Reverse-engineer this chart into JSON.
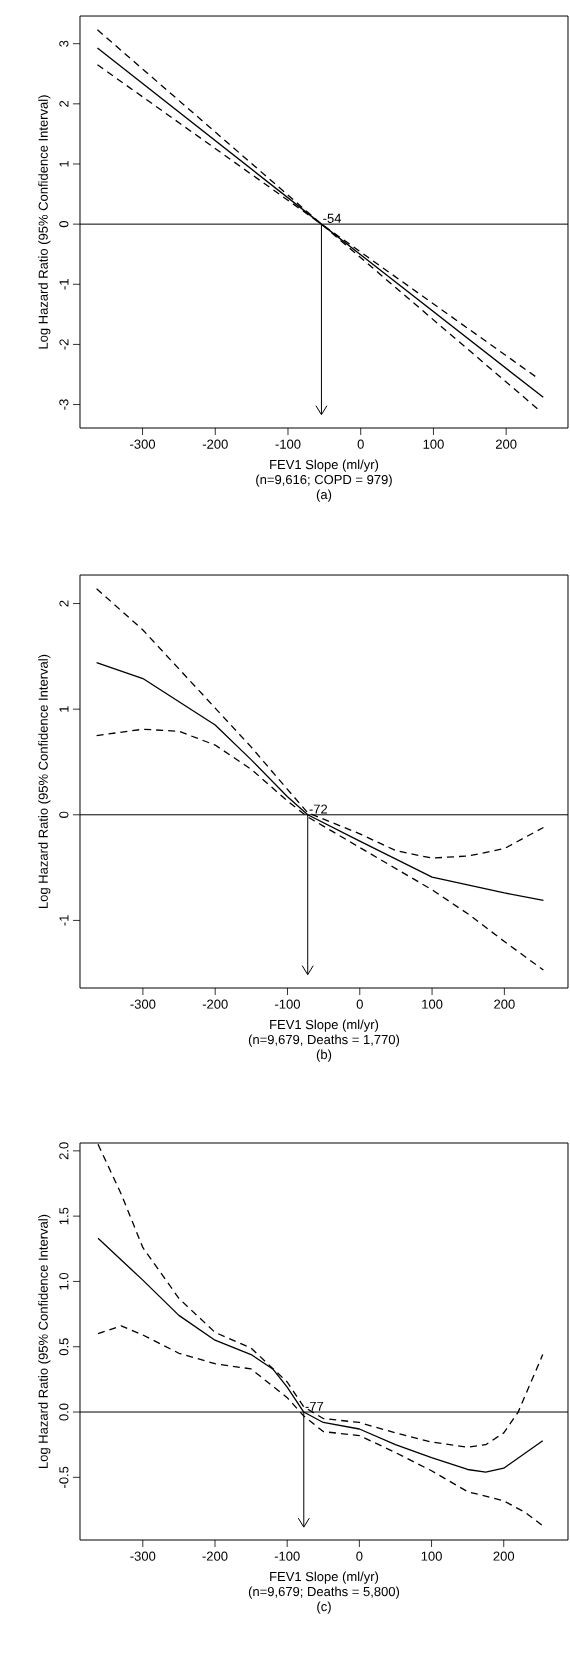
{
  "chart_data": [
    {
      "type": "line",
      "xlabel": "FEV1 Slope (ml/yr)",
      "ylabel": "Log Hazard Ratio (95% Confidence Interval)",
      "xlim": [
        -386,
        285
      ],
      "ylim": [
        -3.39,
        3.46
      ],
      "xticks": [
        -300,
        -200,
        -100,
        0,
        100,
        200
      ],
      "yticks": [
        -3,
        -2,
        -1,
        0,
        1,
        2,
        3
      ],
      "series": [
        {
          "color": "#000000",
          "line_style": "solid",
          "x": [
            -362,
            -54,
            251
          ],
          "values": [
            2.93,
            0.0,
            -2.88
          ]
        },
        {
          "color": "#000000",
          "line_style": "dashed",
          "x": [
            -362,
            -54,
            241
          ],
          "values": [
            3.23,
            0.0,
            -2.54
          ]
        },
        {
          "color": "#000000",
          "line_style": "dashed",
          "x": [
            -362,
            -54,
            246
          ],
          "values": [
            2.65,
            0.0,
            -3.1
          ]
        }
      ],
      "ref_lines": [
        {
          "axis": "y",
          "value": 0
        }
      ],
      "annotations": [
        {
          "text": "-54",
          "x": -54,
          "y": 0
        },
        "(n=9,616; COPD = 979)",
        "(a)"
      ]
    },
    {
      "type": "line",
      "xlabel": "FEV1 Slope (ml/yr)",
      "ylabel": "Log Hazard Ratio (95% Confidence Interval)",
      "xlim": [
        -387,
        288
      ],
      "ylim": [
        -1.64,
        2.27
      ],
      "xticks": [
        -300,
        -200,
        -100,
        0,
        100,
        200
      ],
      "yticks": [
        -1,
        0,
        1,
        2
      ],
      "series": [
        {
          "color": "#000000",
          "line_style": "solid",
          "x": [
            -364,
            -300,
            -200,
            -150,
            -100,
            -72,
            0,
            100,
            200,
            254
          ],
          "values": [
            1.44,
            1.29,
            0.85,
            0.52,
            0.17,
            0.0,
            -0.25,
            -0.59,
            -0.74,
            -0.81
          ]
        },
        {
          "color": "#000000",
          "line_style": "dashed",
          "x": [
            -364,
            -300,
            -200,
            -150,
            -100,
            -72,
            0,
            50,
            100,
            150,
            200,
            254
          ],
          "values": [
            2.14,
            1.75,
            1.01,
            0.64,
            0.24,
            0.02,
            -0.18,
            -0.34,
            -0.41,
            -0.39,
            -0.32,
            -0.12
          ]
        },
        {
          "color": "#000000",
          "line_style": "dashed",
          "x": [
            -364,
            -300,
            -250,
            -200,
            -150,
            -100,
            -72,
            0,
            100,
            150,
            200,
            254
          ],
          "values": [
            0.75,
            0.81,
            0.79,
            0.66,
            0.43,
            0.13,
            -0.02,
            -0.31,
            -0.71,
            -0.94,
            -1.2,
            -1.47
          ]
        }
      ],
      "ref_lines": [
        {
          "axis": "y",
          "value": 0
        }
      ],
      "annotations": [
        {
          "text": "-72",
          "x": -72,
          "y": 0
        },
        "(n=9,679, Deaths = 1,770)",
        "(b)"
      ]
    },
    {
      "type": "line",
      "xlabel": "FEV1 Slope (ml/yr)",
      "ylabel": "Log Hazard Ratio (95% Confidence Interval)",
      "xlim": [
        -387,
        289
      ],
      "ylim": [
        -0.98,
        2.06
      ],
      "xticks": [
        -300,
        -200,
        -100,
        0,
        100,
        200
      ],
      "yticks": [
        {
          "value": -0.5,
          "label": "-0.5"
        },
        {
          "value": 0,
          "label": "0.0"
        },
        {
          "value": 0.5,
          "label": "0.5"
        },
        {
          "value": 1,
          "label": "1.0"
        },
        {
          "value": 1.5,
          "label": "1.5"
        },
        {
          "value": 2,
          "label": "2.0"
        }
      ],
      "series": [
        {
          "color": "#000000",
          "line_style": "solid",
          "x": [
            -362,
            -300,
            -250,
            -200,
            -150,
            -120,
            -100,
            -77,
            -50,
            0,
            50,
            100,
            150,
            175,
            200,
            254
          ],
          "values": [
            1.33,
            1.01,
            0.74,
            0.55,
            0.44,
            0.33,
            0.19,
            0.0,
            -0.08,
            -0.13,
            -0.25,
            -0.35,
            -0.44,
            -0.46,
            -0.43,
            -0.22
          ]
        },
        {
          "color": "#000000",
          "line_style": "dashed",
          "x": [
            -362,
            -330,
            -300,
            -250,
            -200,
            -150,
            -100,
            -77,
            -50,
            0,
            50,
            100,
            150,
            175,
            200,
            220,
            254
          ],
          "values": [
            2.05,
            1.67,
            1.26,
            0.87,
            0.61,
            0.49,
            0.23,
            0.04,
            -0.05,
            -0.08,
            -0.16,
            -0.23,
            -0.27,
            -0.25,
            -0.16,
            0.0,
            0.44
          ]
        },
        {
          "color": "#000000",
          "line_style": "dashed",
          "x": [
            -362,
            -330,
            -300,
            -250,
            -200,
            -150,
            -100,
            -77,
            -50,
            0,
            50,
            100,
            150,
            200,
            230,
            254
          ],
          "values": [
            0.6,
            0.66,
            0.59,
            0.45,
            0.37,
            0.33,
            0.11,
            -0.03,
            -0.15,
            -0.18,
            -0.31,
            -0.45,
            -0.61,
            -0.68,
            -0.77,
            -0.87
          ]
        }
      ],
      "ref_lines": [
        {
          "axis": "y",
          "value": 0
        }
      ],
      "annotations": [
        {
          "text": "-77",
          "x": -77,
          "y": 0
        },
        "(n=9,679; Deaths = 5,800)",
        "(c)"
      ]
    }
  ]
}
